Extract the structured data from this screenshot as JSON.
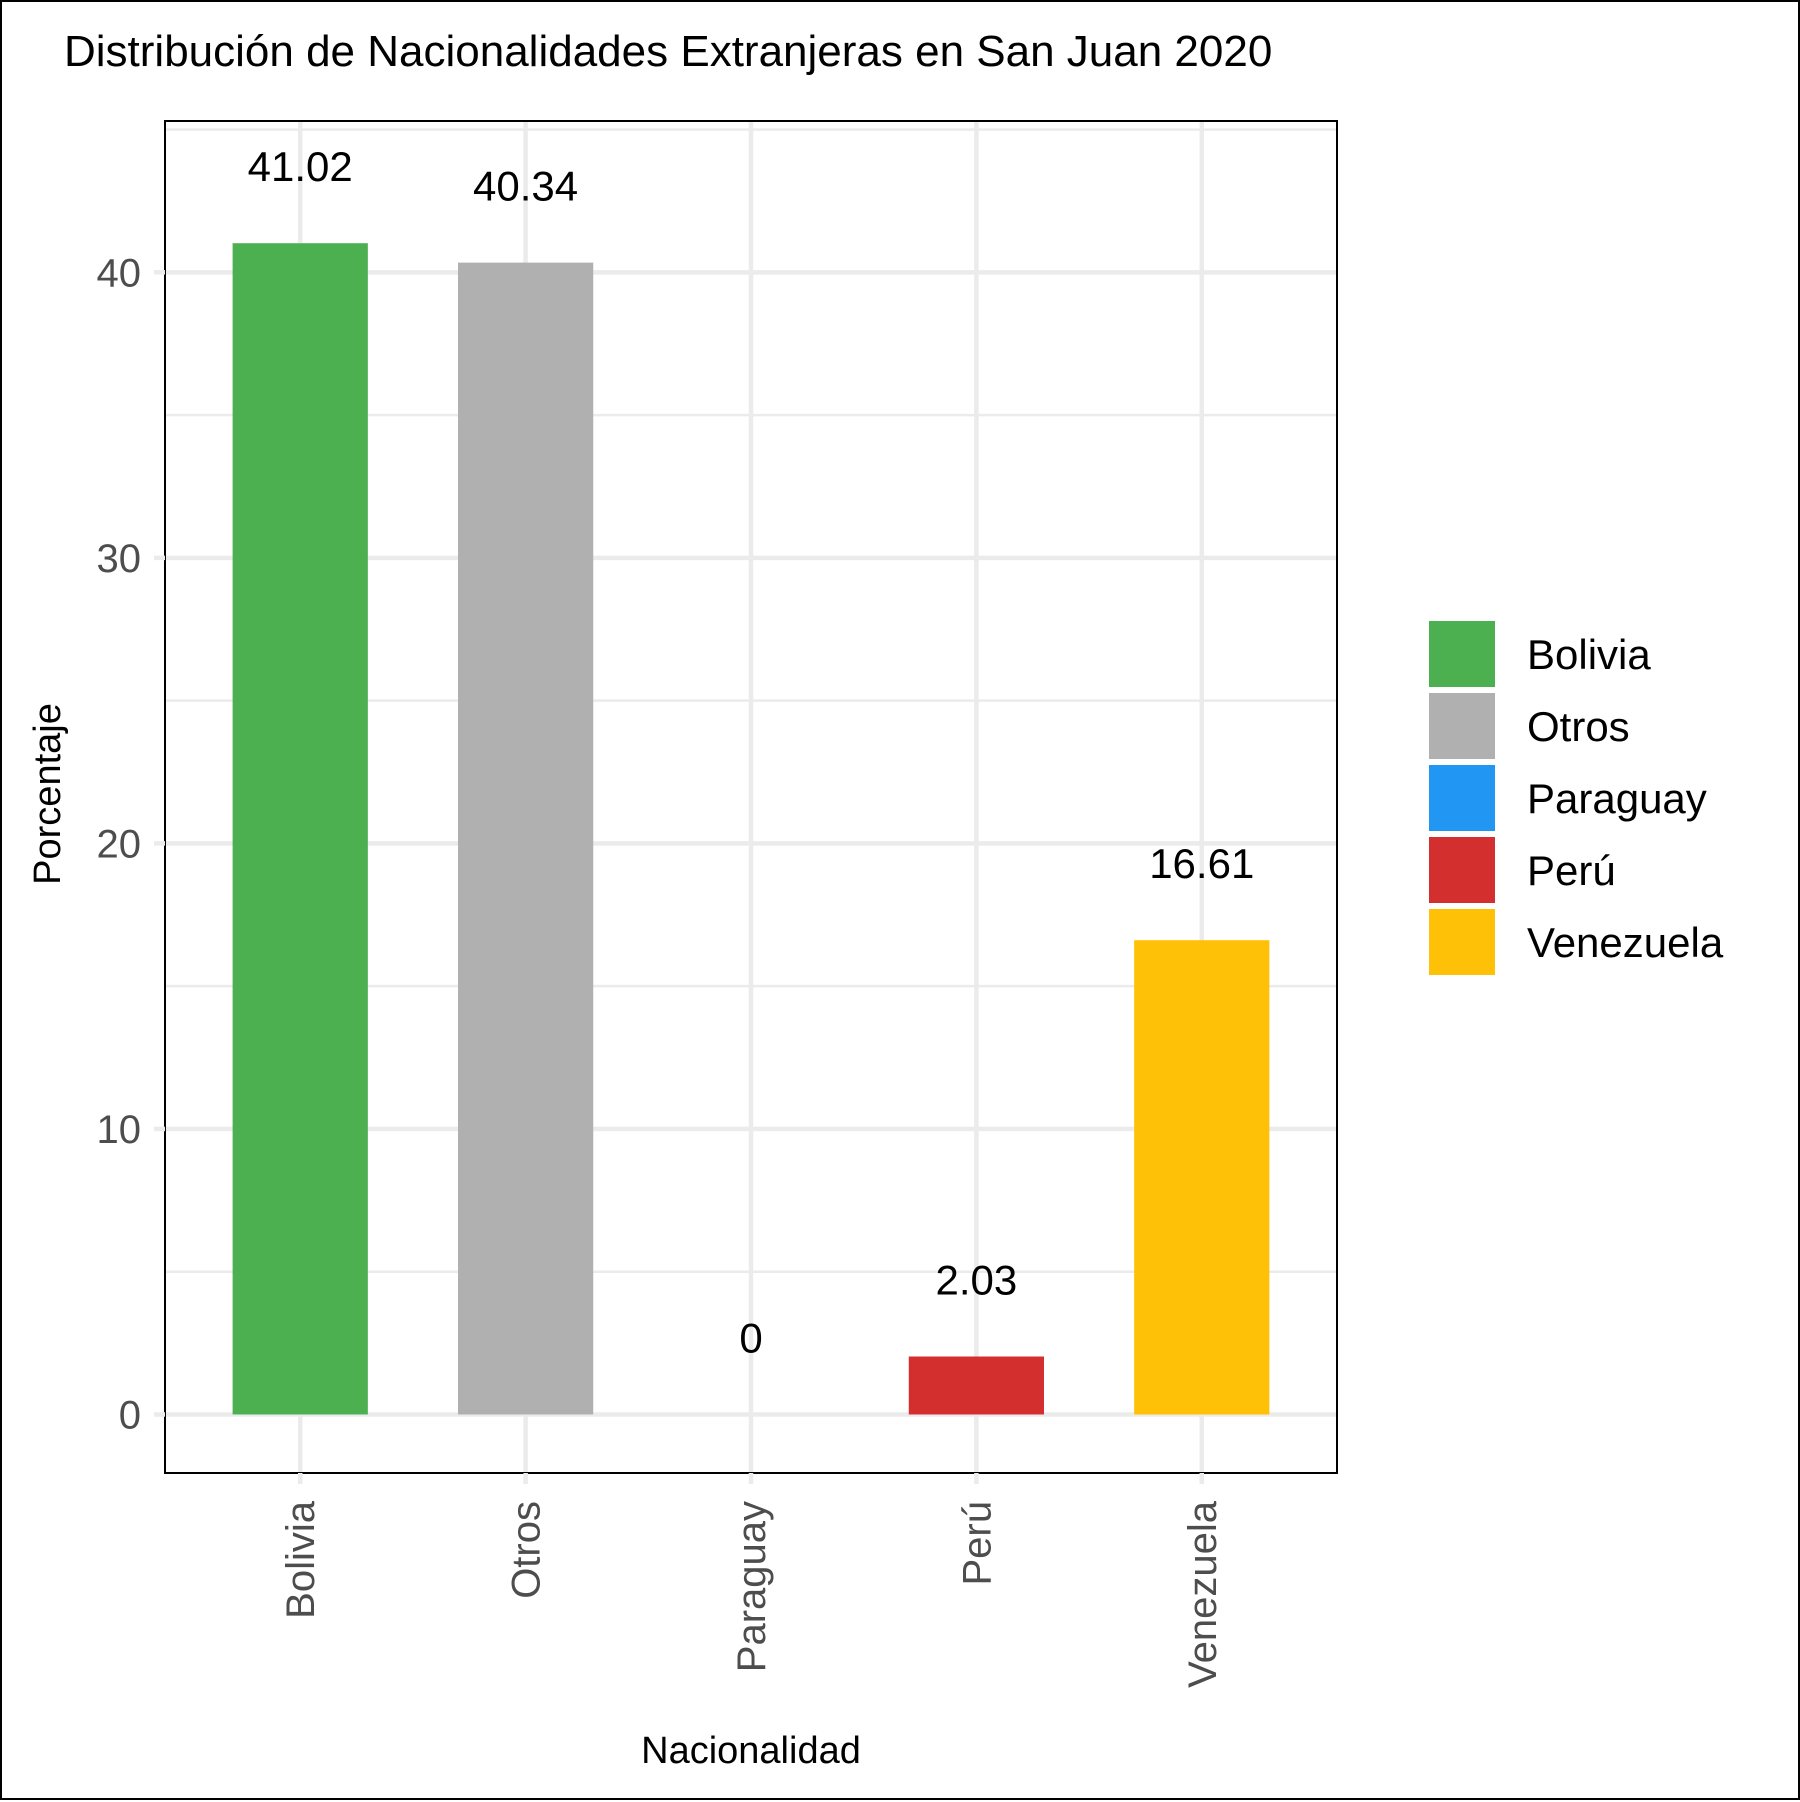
{
  "chart_data": {
    "type": "bar",
    "title": "Distribución de Nacionalidades Extranjeras en San Juan 2020",
    "xlabel": "Nacionalidad",
    "ylabel": "Porcentaje",
    "categories": [
      "Bolivia",
      "Otros",
      "Paraguay",
      "Perú",
      "Venezuela"
    ],
    "values": [
      41.02,
      40.34,
      0,
      2.03,
      16.61
    ],
    "data_labels": [
      "41.02",
      "40.34",
      "0",
      "2.03",
      "16.61"
    ],
    "colors": [
      "#4caf50",
      "#b0b0b0",
      "#2196f3",
      "#d32f2f",
      "#ffc107"
    ],
    "ylim": [
      -2.05,
      45.3
    ],
    "yticks": [
      0,
      10,
      20,
      30,
      40
    ],
    "ytick_labels": [
      "0",
      "10",
      "20",
      "30",
      "40"
    ],
    "grid": true,
    "legend": {
      "placement": "right",
      "entries": [
        "Bolivia",
        "Otros",
        "Paraguay",
        "Perú",
        "Venezuela"
      ]
    }
  }
}
